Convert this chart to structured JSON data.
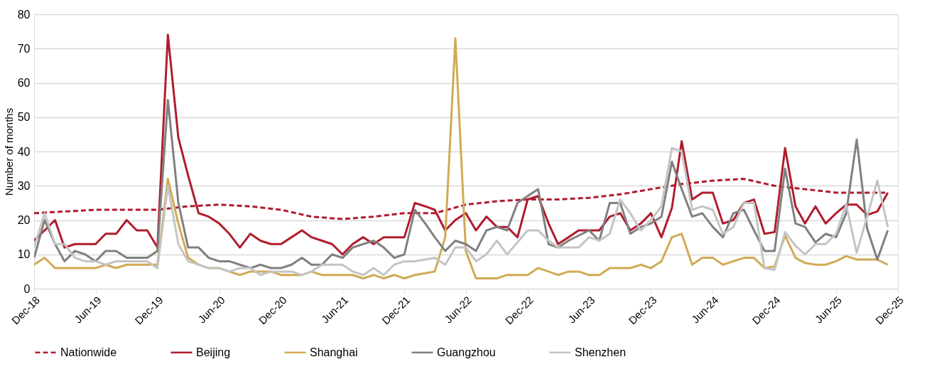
{
  "chart_data": {
    "type": "line",
    "ylabel": "Number of months",
    "x": [
      "2018-12",
      "2019-01",
      "2019-02",
      "2019-03",
      "2019-04",
      "2019-05",
      "2019-06",
      "2019-07",
      "2019-08",
      "2019-09",
      "2019-10",
      "2019-11",
      "2019-12",
      "2020-01",
      "2020-02",
      "2020-03",
      "2020-04",
      "2020-05",
      "2020-06",
      "2020-07",
      "2020-08",
      "2020-09",
      "2020-10",
      "2020-11",
      "2020-12",
      "2021-01",
      "2021-02",
      "2021-03",
      "2021-04",
      "2021-05",
      "2021-06",
      "2021-07",
      "2021-08",
      "2021-09",
      "2021-10",
      "2021-11",
      "2021-12",
      "2022-01",
      "2022-02",
      "2022-03",
      "2022-04",
      "2022-05",
      "2022-06",
      "2022-07",
      "2022-08",
      "2022-09",
      "2022-10",
      "2022-11",
      "2022-12",
      "2023-01",
      "2023-02",
      "2023-03",
      "2023-04",
      "2023-05",
      "2023-06",
      "2023-07",
      "2023-08",
      "2023-09",
      "2023-10",
      "2023-11",
      "2023-12",
      "2024-01",
      "2024-02",
      "2024-03",
      "2024-04",
      "2024-05",
      "2024-06",
      "2024-07",
      "2024-08",
      "2024-09",
      "2024-10",
      "2024-11",
      "2024-12",
      "2025-01",
      "2025-02",
      "2025-03",
      "2025-04",
      "2025-05",
      "2025-06",
      "2025-07",
      "2025-08",
      "2025-09",
      "2025-10",
      "2025-11"
    ],
    "series": [
      {
        "name": "Nationwide",
        "color": "#b01c2e",
        "line_style": "dashed",
        "x": [
          "2018-12",
          "2019-03",
          "2019-06",
          "2019-09",
          "2019-12",
          "2020-03",
          "2020-06",
          "2020-09",
          "2020-12",
          "2021-03",
          "2021-06",
          "2021-09",
          "2021-12",
          "2022-03",
          "2022-06",
          "2022-09",
          "2022-12",
          "2023-03",
          "2023-06",
          "2023-09",
          "2023-12",
          "2024-03",
          "2024-06",
          "2024-09",
          "2024-12",
          "2025-03",
          "2025-06",
          "2025-09",
          "2025-11"
        ],
        "values": [
          22,
          22.5,
          23,
          23,
          23,
          24,
          24.5,
          24,
          23,
          21,
          20.3,
          21,
          22,
          22,
          24.5,
          25.5,
          26,
          26,
          26.5,
          27.5,
          29,
          30.5,
          31.5,
          32,
          30,
          29,
          28,
          28,
          28
        ]
      },
      {
        "name": "Beijing",
        "color": "#b01c2e",
        "values": [
          14,
          17,
          20,
          12,
          13,
          13,
          13,
          16,
          16,
          20,
          17,
          17,
          12,
          74,
          44,
          33,
          22,
          21,
          19,
          16,
          12,
          16,
          14,
          13,
          13,
          15,
          17,
          15,
          14,
          13,
          10,
          13,
          15,
          13,
          15,
          15,
          15,
          25,
          24,
          23,
          17,
          20,
          22,
          17,
          21,
          18,
          18,
          15,
          26,
          27,
          19,
          13,
          15,
          17,
          17,
          17,
          21,
          22,
          17,
          19,
          22,
          15,
          23.5,
          43,
          26,
          28,
          28,
          19,
          20,
          25,
          26,
          16,
          16.5,
          41,
          24,
          19,
          24,
          19,
          22,
          24.5,
          24.5,
          21.5,
          22.5,
          28
        ]
      },
      {
        "name": "Shanghai",
        "color": "#d1aa55",
        "values": [
          7,
          9,
          6,
          6,
          6,
          6,
          6,
          7,
          6,
          7,
          7,
          7,
          7,
          32,
          19,
          9,
          7,
          6,
          6,
          5,
          4,
          5,
          5,
          5,
          4,
          4,
          4,
          5,
          4,
          4,
          4,
          4,
          3,
          4,
          3,
          4,
          3,
          4,
          4.5,
          5,
          15,
          73,
          11,
          3,
          3,
          3,
          4,
          4,
          4,
          6,
          5,
          4,
          5,
          5,
          4,
          4,
          6,
          6,
          6,
          7,
          6,
          8,
          15,
          16,
          7,
          9,
          9,
          7,
          8,
          9,
          9,
          6,
          6.5,
          15.5,
          9,
          7.5,
          7,
          7,
          8,
          9.5,
          8.5,
          8.5,
          8.5,
          7
        ]
      },
      {
        "name": "Guangzhou",
        "color": "#808080",
        "values": [
          9,
          20,
          13,
          8,
          11,
          10,
          8,
          11,
          11,
          9,
          9,
          9,
          11,
          55,
          25,
          12,
          12,
          9,
          8,
          8,
          7,
          6,
          7,
          6,
          6,
          7,
          9,
          7,
          7,
          10,
          9,
          12,
          13,
          14,
          12,
          9,
          10,
          23,
          19,
          15,
          11,
          14,
          13,
          11,
          17,
          18,
          17,
          25,
          27,
          29,
          13,
          12,
          14,
          15.5,
          17,
          14,
          25,
          25,
          16,
          18,
          19,
          21,
          37,
          29,
          21,
          22,
          18,
          15,
          22,
          23,
          17,
          11,
          11,
          35,
          19,
          18,
          13.5,
          16,
          15,
          22,
          43.5,
          17.5,
          8.5,
          17
        ]
      },
      {
        "name": "Shenzhen",
        "color": "#c4c4c4",
        "values": [
          12,
          22,
          13,
          13,
          9,
          8,
          8,
          7,
          8,
          8,
          8,
          8,
          6,
          30,
          13,
          8,
          7,
          6,
          6,
          5,
          6,
          6,
          4,
          5,
          5,
          5,
          4,
          5,
          7,
          7,
          7,
          5,
          4,
          6,
          4,
          7,
          8,
          8,
          8.5,
          9,
          7,
          12,
          12,
          8,
          10,
          14,
          10,
          13.5,
          17,
          17,
          14,
          12,
          12,
          12,
          15,
          14,
          16,
          26,
          22,
          17,
          20,
          24,
          41,
          40,
          23,
          24,
          23,
          16,
          18,
          25,
          25,
          6,
          5.5,
          16.5,
          12.5,
          10,
          13,
          13,
          16,
          24.5,
          10.5,
          21,
          31.5,
          18
        ]
      }
    ],
    "xlim": [
      "2018-12",
      "2025-12"
    ],
    "xticks": [
      {
        "value": "2018-12",
        "label": "Dec-18"
      },
      {
        "value": "2019-06",
        "label": "Jun-19"
      },
      {
        "value": "2019-12",
        "label": "Dec-19"
      },
      {
        "value": "2020-06",
        "label": "Jun-20"
      },
      {
        "value": "2020-12",
        "label": "Dec-20"
      },
      {
        "value": "2021-06",
        "label": "Jun-21"
      },
      {
        "value": "2021-12",
        "label": "Dec-21"
      },
      {
        "value": "2022-06",
        "label": "Jun-22"
      },
      {
        "value": "2022-12",
        "label": "Dec-22"
      },
      {
        "value": "2023-06",
        "label": "Jun-23"
      },
      {
        "value": "2023-12",
        "label": "Dec-23"
      },
      {
        "value": "2024-06",
        "label": "Jun-24"
      },
      {
        "value": "2024-12",
        "label": "Dec-24"
      },
      {
        "value": "2025-06",
        "label": "Jun-25"
      },
      {
        "value": "2025-12",
        "label": "Dec-25"
      }
    ],
    "ylim": [
      0,
      80
    ],
    "yticks": [
      0,
      10,
      20,
      30,
      40,
      50,
      60,
      70,
      80
    ],
    "grid": "y",
    "legend": "bottom",
    "marker": "none"
  }
}
